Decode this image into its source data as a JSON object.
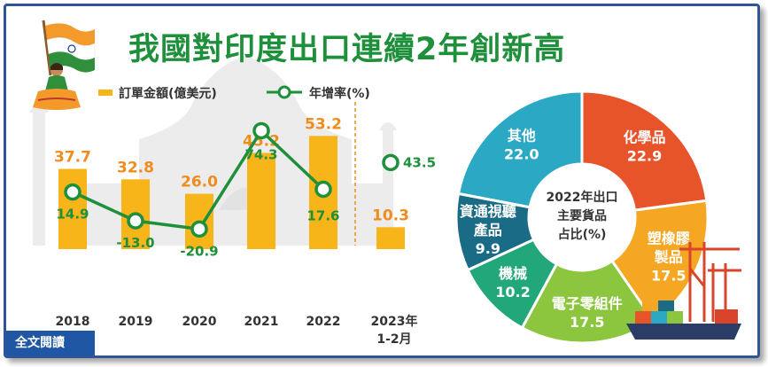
{
  "title": "我國對印度出口連續2年創新高",
  "legend": {
    "bar_label": "訂單金額(億美元)",
    "line_label": "年增率(%)"
  },
  "colors": {
    "bar": "#f7b519",
    "bar_label": "#f08c1e",
    "line": "#1e8f3a",
    "title": "#1e8f3a",
    "fulltext_bg": "#1f57a4"
  },
  "full_text_button": "全文閱讀",
  "icons": [
    "india-flag-icon",
    "dancer-icon",
    "port-cranes-icon",
    "cargo-ship-icon"
  ],
  "chart_data": [
    {
      "type": "bar",
      "title": "",
      "categories": [
        "2018",
        "2019",
        "2020",
        "2021",
        "2022",
        "2023年 1-2月"
      ],
      "category_lines": [
        [
          "2018"
        ],
        [
          "2019"
        ],
        [
          "2020"
        ],
        [
          "2021"
        ],
        [
          "2022"
        ],
        [
          "2023年",
          "1-2月"
        ]
      ],
      "series": [
        {
          "name": "訂單金額(億美元)",
          "type": "bar",
          "values": [
            37.7,
            32.8,
            26.0,
            45.2,
            53.2,
            10.3
          ],
          "labels": [
            "37.7",
            "32.8",
            "26.0",
            "45.2",
            "53.2",
            "10.3"
          ]
        },
        {
          "name": "年增率(%)",
          "type": "line",
          "values": [
            14.9,
            -13.0,
            -20.9,
            74.3,
            17.6,
            43.5
          ],
          "labels": [
            "14.9",
            "-13.0",
            "-20.9",
            "74.3",
            "17.6",
            "43.5"
          ]
        }
      ],
      "line_connected_through_index": 4,
      "ylim_bar": [
        0,
        60
      ],
      "ylim_line": [
        -40,
        140
      ],
      "grid": false
    },
    {
      "type": "pie",
      "title": "2022年出口主要貨品占比(%)",
      "center_lines": [
        "2022年出口",
        "主要貨品",
        "占比(%)"
      ],
      "slices": [
        {
          "label": "化學品",
          "label_lines": [
            "化學品"
          ],
          "value": 22.9,
          "value_text": "22.9",
          "color": "#e8542a"
        },
        {
          "label": "塑橡膠製品",
          "label_lines": [
            "塑橡膠",
            "製品"
          ],
          "value": 17.5,
          "value_text": "17.5",
          "color": "#f5a623"
        },
        {
          "label": "電子零組件",
          "label_lines": [
            "電子零組件"
          ],
          "value": 17.5,
          "value_text": "17.5",
          "color": "#8cc63e"
        },
        {
          "label": "機械",
          "label_lines": [
            "機械"
          ],
          "value": 10.2,
          "value_text": "10.2",
          "color": "#21a77a"
        },
        {
          "label": "資通視聽產品",
          "label_lines": [
            "資通視聽",
            "產品"
          ],
          "value": 9.9,
          "value_text": "9.9",
          "color": "#1a6b86"
        },
        {
          "label": "其他",
          "label_lines": [
            "其他"
          ],
          "value": 22.0,
          "value_text": "22.0",
          "color": "#2aa8c4"
        }
      ]
    }
  ]
}
